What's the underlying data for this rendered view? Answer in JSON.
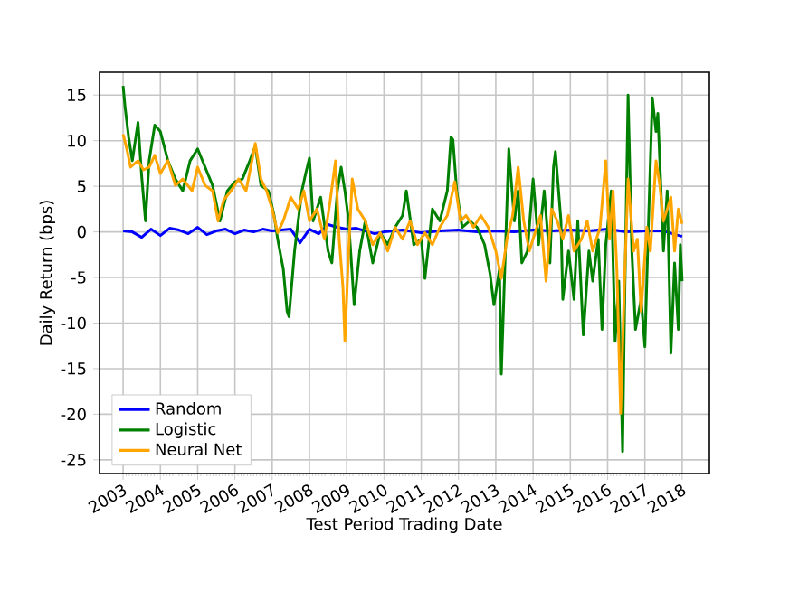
{
  "chart_data": {
    "type": "line",
    "xlabel": "Test Period Trading Date",
    "ylabel": "Daily Return (bps)",
    "xlim": [
      "2002-05-15",
      "2018-09-25"
    ],
    "xticks": [
      "2003",
      "2004",
      "2005",
      "2006",
      "2007",
      "2008",
      "2009",
      "2010",
      "2011",
      "2012",
      "2013",
      "2014",
      "2015",
      "2016",
      "2017",
      "2018"
    ],
    "ylim": [
      -26.5,
      17.5
    ],
    "yticks": [
      -25,
      -20,
      -15,
      -10,
      -5,
      0,
      5,
      10,
      15
    ],
    "grid": true,
    "legend": "bottom left",
    "line_style": "solid",
    "marker": "none",
    "series": [
      {
        "name": "Random",
        "color": "#0000ff",
        "x": [
          "2003-01-01",
          "2003-04-01",
          "2003-07-02",
          "2003-10-01",
          "2004-01-01",
          "2004-04-01",
          "2004-07-02",
          "2004-10-01",
          "2005-01-01",
          "2005-04-01",
          "2005-07-02",
          "2005-10-01",
          "2006-01-01",
          "2006-04-01",
          "2006-07-02",
          "2006-10-01",
          "2007-01-01",
          "2007-04-01",
          "2007-07-02",
          "2007-10-01",
          "2008-01-01",
          "2008-04-01",
          "2008-07-02",
          "2008-10-01",
          "2009-01-01",
          "2009-04-01",
          "2009-07-02",
          "2009-10-01",
          "2010-01-01",
          "2010-07-02",
          "2011-01-01",
          "2011-07-02",
          "2012-01-01",
          "2012-07-02",
          "2013-01-01",
          "2013-07-02",
          "2014-01-01",
          "2014-07-02",
          "2015-01-01",
          "2015-07-02",
          "2016-01-01",
          "2016-07-02",
          "2017-01-01",
          "2017-07-02",
          "2018-01-01"
        ],
        "values": [
          0.1,
          0.0,
          -0.6,
          0.3,
          -0.4,
          0.4,
          0.2,
          -0.2,
          0.5,
          -0.3,
          0.1,
          0.3,
          -0.2,
          0.2,
          0.0,
          0.3,
          0.1,
          0.2,
          0.3,
          -1.2,
          0.3,
          -0.2,
          0.8,
          0.5,
          0.3,
          0.4,
          0.1,
          -0.2,
          0.0,
          0.2,
          -0.1,
          0.1,
          0.2,
          0.0,
          0.1,
          0.0,
          0.2,
          0.1,
          0.2,
          0.1,
          0.3,
          0.0,
          0.1,
          0.1,
          -0.5
        ]
      },
      {
        "name": "Logistic",
        "color": "#008000",
        "x": [
          "2003-01-01",
          "2003-01-20",
          "2003-02-24",
          "2003-04-01",
          "2003-05-27",
          "2003-07-02",
          "2003-08-08",
          "2003-09-13",
          "2003-11-07",
          "2004-01-01",
          "2004-03-15",
          "2004-05-27",
          "2004-08-08",
          "2004-10-19",
          "2005-01-01",
          "2005-03-15",
          "2005-05-27",
          "2005-08-08",
          "2005-10-19",
          "2006-01-01",
          "2006-03-15",
          "2006-05-27",
          "2006-07-20",
          "2006-09-13",
          "2006-11-25",
          "2007-01-20",
          "2007-02-24",
          "2007-04-20",
          "2007-05-27",
          "2007-06-15",
          "2007-08-08",
          "2007-10-19",
          "2007-11-25",
          "2008-01-01",
          "2008-02-06",
          "2008-04-20",
          "2008-07-02",
          "2008-08-08",
          "2008-10-01",
          "2008-11-07",
          "2008-12-14",
          "2009-01-20",
          "2009-03-15",
          "2009-05-08",
          "2009-07-02",
          "2009-09-13",
          "2009-11-25",
          "2010-02-06",
          "2010-04-20",
          "2010-07-02",
          "2010-08-08",
          "2010-10-19",
          "2011-01-01",
          "2011-02-06",
          "2011-04-20",
          "2011-07-02",
          "2011-09-13",
          "2011-10-19",
          "2011-11-07",
          "2011-12-14",
          "2012-02-06",
          "2012-04-20",
          "2012-07-02",
          "2012-09-13",
          "2012-11-07",
          "2012-12-14",
          "2013-02-06",
          "2013-02-24",
          "2013-04-01",
          "2013-05-08",
          "2013-07-02",
          "2013-08-08",
          "2013-09-13",
          "2013-11-07",
          "2014-01-01",
          "2014-02-24",
          "2014-04-20",
          "2014-06-15",
          "2014-07-20",
          "2014-08-08",
          "2014-10-01",
          "2014-10-19",
          "2014-12-14",
          "2015-02-06",
          "2015-03-15",
          "2015-05-08",
          "2015-07-02",
          "2015-08-08",
          "2015-10-01",
          "2015-11-07",
          "2015-12-14",
          "2016-02-06",
          "2016-03-15",
          "2016-04-20",
          "2016-05-27",
          "2016-06-15",
          "2016-07-20",
          "2016-08-26",
          "2016-10-01",
          "2016-11-25",
          "2017-01-01",
          "2017-02-06",
          "2017-03-15",
          "2017-04-20",
          "2017-05-08",
          "2017-07-02",
          "2017-08-08",
          "2017-09-13",
          "2017-10-19",
          "2017-11-25",
          "2017-12-14",
          "2018-01-01"
        ],
        "values": [
          16.0,
          13.7,
          10.4,
          7.8,
          12.0,
          6.1,
          1.2,
          7.8,
          11.7,
          11.0,
          7.8,
          5.8,
          4.5,
          7.8,
          9.1,
          7.1,
          5.1,
          1.2,
          4.5,
          5.5,
          5.8,
          7.8,
          9.4,
          5.1,
          4.5,
          1.8,
          -0.8,
          -4.1,
          -8.7,
          -9.3,
          -2.1,
          4.5,
          6.4,
          8.1,
          1.2,
          3.8,
          -2.1,
          -3.4,
          4.5,
          7.1,
          4.5,
          1.2,
          -8.0,
          -2.1,
          1.2,
          -3.4,
          -0.1,
          -1.4,
          0.5,
          1.8,
          4.5,
          -1.4,
          -0.8,
          -5.1,
          2.5,
          1.2,
          4.5,
          10.4,
          10.1,
          4.5,
          0.5,
          1.2,
          0.5,
          -1.4,
          -4.7,
          -8.0,
          -4.1,
          -15.6,
          -3.4,
          9.1,
          1.2,
          4.5,
          -3.4,
          -2.1,
          5.8,
          -1.4,
          4.5,
          -3.4,
          7.1,
          8.8,
          1.2,
          -7.4,
          -2.1,
          -7.4,
          1.2,
          -11.3,
          -2.1,
          -5.4,
          -0.8,
          -10.7,
          -1.4,
          4.5,
          -12.0,
          -5.4,
          -24.1,
          -8.7,
          15.0,
          -2.1,
          -10.7,
          -7.4,
          -12.6,
          1.2,
          14.7,
          11.0,
          13.0,
          -2.1,
          4.5,
          -13.3,
          -3.4,
          -10.7,
          -1.4,
          -5.4
        ]
      },
      {
        "name": "Neural Net",
        "color": "#ffa500",
        "x": [
          "2003-01-01",
          "2003-02-06",
          "2003-03-15",
          "2003-05-27",
          "2003-07-20",
          "2003-09-13",
          "2003-11-07",
          "2004-01-01",
          "2004-03-15",
          "2004-05-27",
          "2004-08-08",
          "2004-11-07",
          "2005-01-01",
          "2005-03-15",
          "2005-05-27",
          "2005-07-20",
          "2005-09-13",
          "2005-11-25",
          "2006-02-06",
          "2006-04-20",
          "2006-07-20",
          "2006-09-13",
          "2006-11-07",
          "2007-01-01",
          "2007-02-24",
          "2007-04-20",
          "2007-07-02",
          "2007-09-13",
          "2007-11-07",
          "2008-01-01",
          "2008-03-15",
          "2008-05-27",
          "2008-07-20",
          "2008-09-13",
          "2008-10-19",
          "2008-11-25",
          "2008-12-14",
          "2009-01-20",
          "2009-02-24",
          "2009-04-20",
          "2009-07-02",
          "2009-09-13",
          "2009-11-25",
          "2010-02-06",
          "2010-04-20",
          "2010-07-02",
          "2010-09-13",
          "2010-11-25",
          "2011-02-06",
          "2011-04-20",
          "2011-07-02",
          "2011-09-13",
          "2011-11-25",
          "2012-01-20",
          "2012-03-15",
          "2012-05-27",
          "2012-08-08",
          "2012-10-19",
          "2013-01-01",
          "2013-02-24",
          "2013-04-20",
          "2013-06-15",
          "2013-08-08",
          "2013-10-01",
          "2013-11-25",
          "2014-01-20",
          "2014-03-15",
          "2014-05-08",
          "2014-07-02",
          "2014-08-26",
          "2014-10-19",
          "2014-12-14",
          "2015-02-06",
          "2015-04-20",
          "2015-06-15",
          "2015-08-08",
          "2015-10-19",
          "2015-12-14",
          "2016-01-20",
          "2016-02-24",
          "2016-04-01",
          "2016-05-08",
          "2016-06-15",
          "2016-07-20",
          "2016-09-13",
          "2016-10-19",
          "2016-11-25",
          "2017-01-20",
          "2017-02-24",
          "2017-04-20",
          "2017-05-27",
          "2017-07-02",
          "2017-08-08",
          "2017-09-13",
          "2017-10-19",
          "2017-11-25",
          "2018-01-01"
        ],
        "values": [
          10.7,
          9.1,
          7.1,
          7.8,
          6.8,
          7.1,
          8.4,
          6.4,
          7.8,
          5.1,
          5.8,
          4.5,
          7.1,
          5.1,
          4.5,
          1.2,
          3.5,
          4.5,
          5.8,
          4.5,
          9.7,
          5.8,
          4.5,
          2.5,
          -0.1,
          1.2,
          3.8,
          2.5,
          4.5,
          1.2,
          2.5,
          -0.8,
          3.2,
          7.8,
          -0.8,
          -6.1,
          -12.0,
          -2.1,
          5.8,
          2.5,
          1.2,
          -1.4,
          -0.1,
          -2.1,
          0.5,
          -0.8,
          1.2,
          -1.4,
          -0.1,
          -1.4,
          0.5,
          1.8,
          5.5,
          1.2,
          1.8,
          0.5,
          1.8,
          0.5,
          -2.1,
          -5.1,
          -0.8,
          1.8,
          7.1,
          1.2,
          -2.1,
          -0.1,
          1.8,
          -5.4,
          2.5,
          1.2,
          -0.8,
          1.8,
          -2.1,
          -0.8,
          1.2,
          -2.1,
          0.5,
          7.8,
          -0.8,
          4.5,
          -4.1,
          -19.9,
          -5.4,
          5.8,
          -2.1,
          -0.8,
          -8.7,
          0.5,
          -2.1,
          7.8,
          5.1,
          1.2,
          2.5,
          3.8,
          -2.1,
          2.5,
          0.9
        ]
      }
    ]
  }
}
